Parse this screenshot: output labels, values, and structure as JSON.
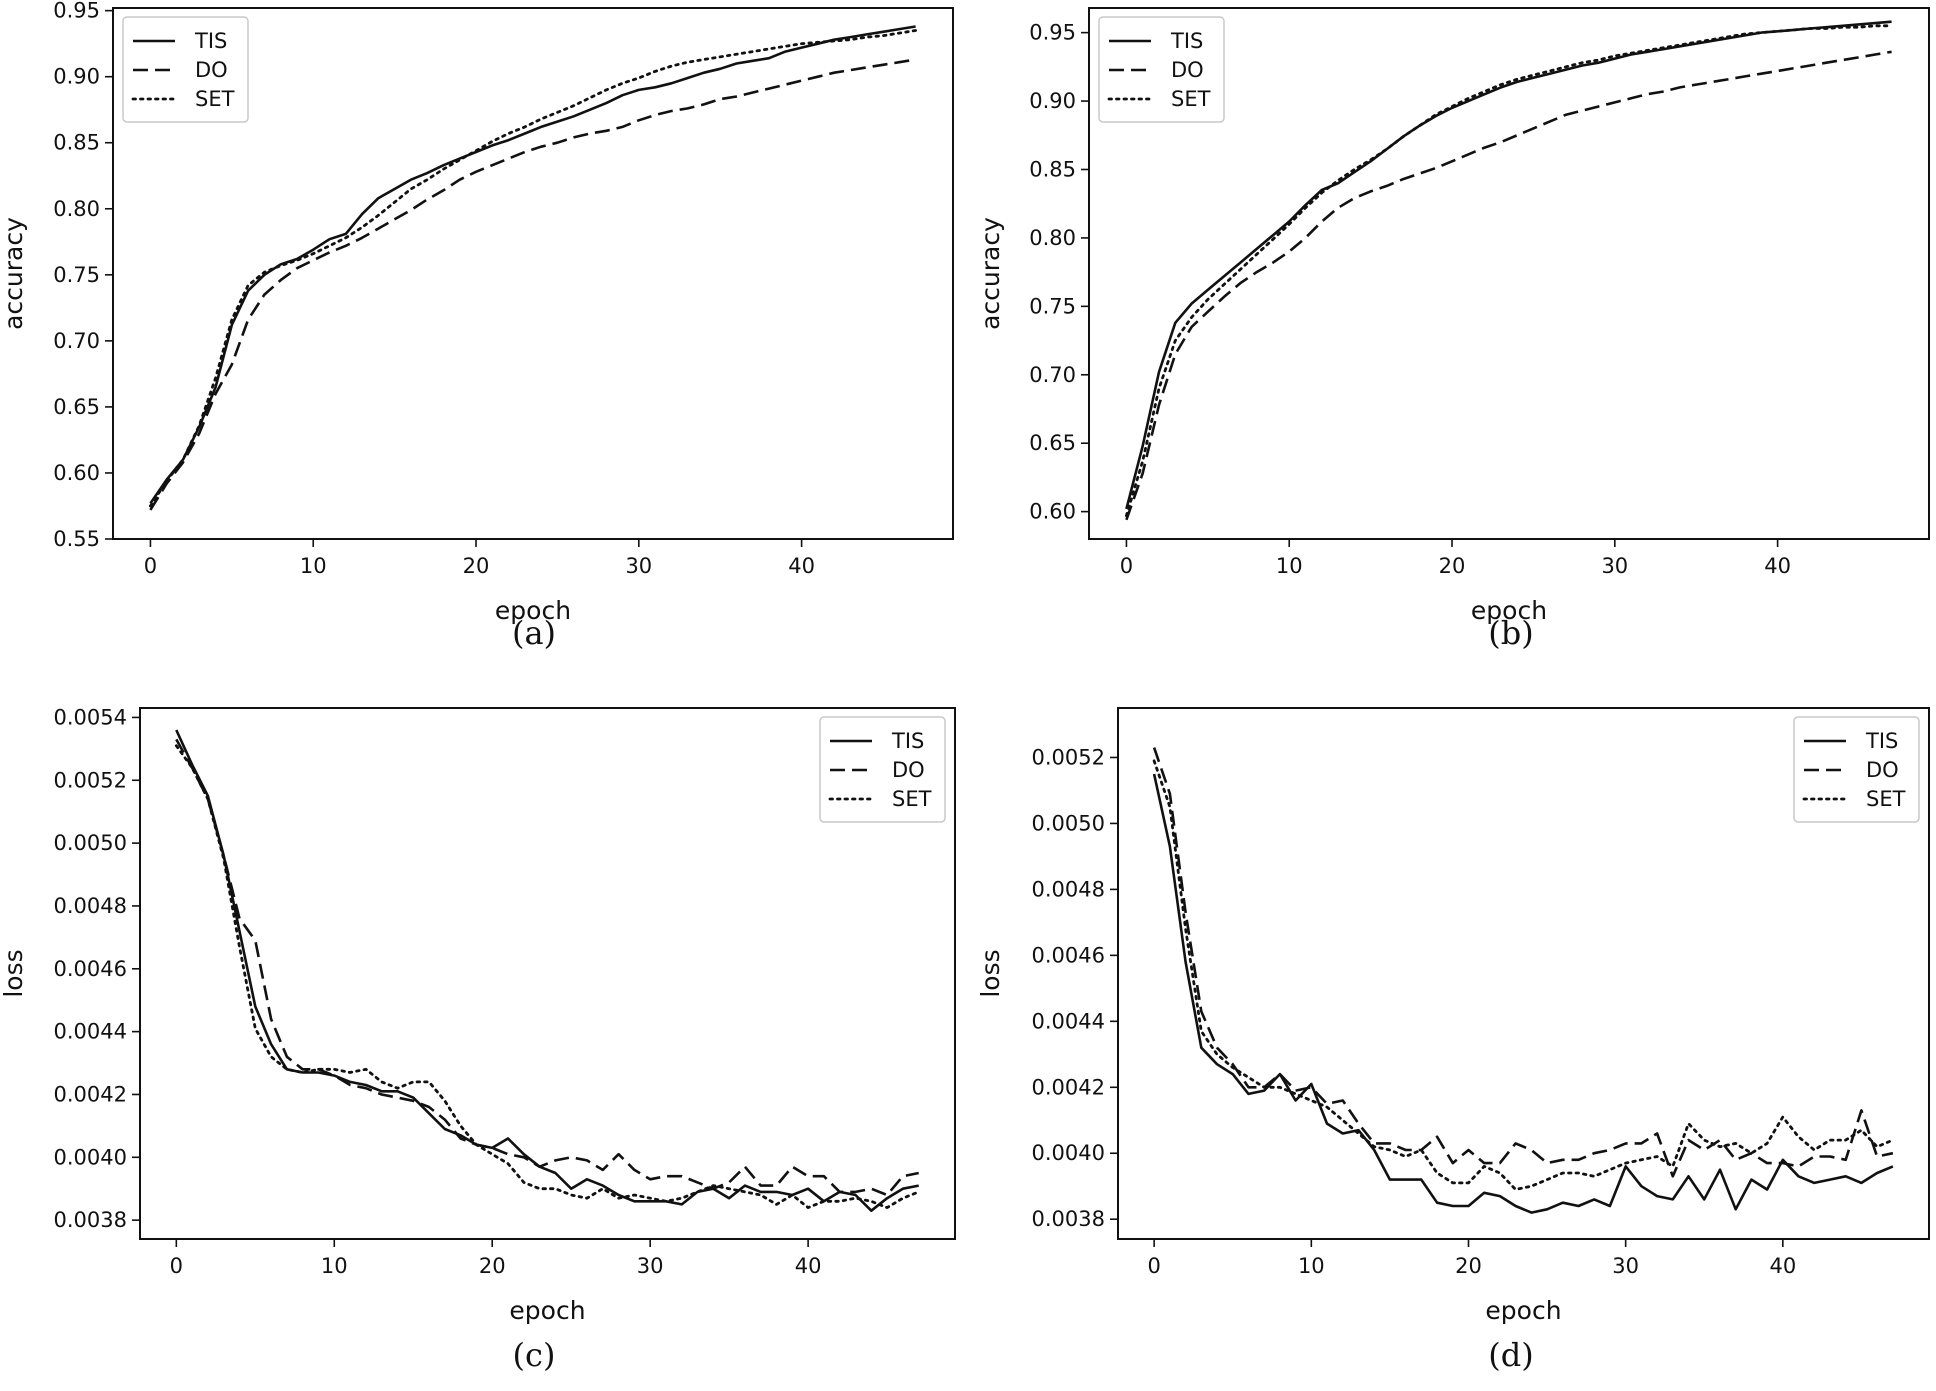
{
  "chart_data": [
    {
      "type": "line",
      "caption": "(a)",
      "xlabel": "epoch",
      "ylabel": "accuracy",
      "xlim": [
        -2.3,
        49.3
      ],
      "ylim": [
        0.55,
        0.952
      ],
      "xticks": [
        0,
        10,
        20,
        30,
        40
      ],
      "yticks": [
        0.55,
        0.6,
        0.65,
        0.7,
        0.75,
        0.8,
        0.85,
        0.9,
        0.95
      ],
      "ytick_decimals": 2,
      "legend": "top-left",
      "grid": false,
      "x": [
        0,
        1,
        2,
        3,
        4,
        5,
        6,
        7,
        8,
        9,
        10,
        11,
        12,
        13,
        14,
        15,
        16,
        17,
        18,
        19,
        20,
        21,
        22,
        23,
        24,
        25,
        26,
        27,
        28,
        29,
        30,
        31,
        32,
        33,
        34,
        35,
        36,
        37,
        38,
        39,
        40,
        41,
        42,
        43,
        44,
        45,
        46,
        47
      ],
      "series": [
        {
          "name": "TIS",
          "style": "solid",
          "values": [
            0.577,
            0.595,
            0.61,
            0.635,
            0.665,
            0.712,
            0.738,
            0.75,
            0.758,
            0.762,
            0.769,
            0.777,
            0.781,
            0.796,
            0.808,
            0.815,
            0.822,
            0.827,
            0.833,
            0.838,
            0.843,
            0.848,
            0.852,
            0.857,
            0.862,
            0.866,
            0.87,
            0.875,
            0.88,
            0.886,
            0.89,
            0.892,
            0.895,
            0.899,
            0.903,
            0.906,
            0.91,
            0.912,
            0.914,
            0.919,
            0.922,
            0.925,
            0.928,
            0.93,
            0.932,
            0.934,
            0.936,
            0.938
          ]
        },
        {
          "name": "DO",
          "style": "dashed",
          "values": [
            0.572,
            0.592,
            0.608,
            0.63,
            0.66,
            0.682,
            0.716,
            0.735,
            0.746,
            0.755,
            0.761,
            0.767,
            0.772,
            0.778,
            0.785,
            0.792,
            0.799,
            0.807,
            0.814,
            0.822,
            0.828,
            0.833,
            0.838,
            0.843,
            0.847,
            0.85,
            0.854,
            0.857,
            0.859,
            0.862,
            0.867,
            0.871,
            0.874,
            0.876,
            0.879,
            0.883,
            0.885,
            0.888,
            0.891,
            0.894,
            0.897,
            0.9,
            0.903,
            0.905,
            0.907,
            0.909,
            0.911,
            0.913
          ]
        },
        {
          "name": "SET",
          "style": "dotted",
          "values": [
            0.575,
            0.594,
            0.61,
            0.636,
            0.672,
            0.716,
            0.742,
            0.752,
            0.757,
            0.761,
            0.766,
            0.772,
            0.778,
            0.786,
            0.795,
            0.805,
            0.815,
            0.822,
            0.83,
            0.837,
            0.844,
            0.851,
            0.857,
            0.862,
            0.868,
            0.873,
            0.878,
            0.884,
            0.89,
            0.895,
            0.899,
            0.904,
            0.908,
            0.911,
            0.913,
            0.915,
            0.917,
            0.919,
            0.921,
            0.923,
            0.925,
            0.926,
            0.927,
            0.928,
            0.93,
            0.931,
            0.933,
            0.935
          ]
        }
      ]
    },
    {
      "type": "line",
      "caption": "(b)",
      "xlabel": "epoch",
      "ylabel": "accuracy",
      "xlim": [
        -2.3,
        49.3
      ],
      "ylim": [
        0.58,
        0.968
      ],
      "xticks": [
        0,
        10,
        20,
        30,
        40
      ],
      "yticks": [
        0.6,
        0.65,
        0.7,
        0.75,
        0.8,
        0.85,
        0.9,
        0.95
      ],
      "ytick_decimals": 2,
      "legend": "top-left",
      "grid": false,
      "x": [
        0,
        1,
        2,
        3,
        4,
        5,
        6,
        7,
        8,
        9,
        10,
        11,
        12,
        13,
        14,
        15,
        16,
        17,
        18,
        19,
        20,
        21,
        22,
        23,
        24,
        25,
        26,
        27,
        28,
        29,
        30,
        31,
        32,
        33,
        34,
        35,
        36,
        37,
        38,
        39,
        40,
        41,
        42,
        43,
        44,
        45,
        46,
        47
      ],
      "series": [
        {
          "name": "TIS",
          "style": "solid",
          "values": [
            0.602,
            0.648,
            0.702,
            0.738,
            0.752,
            0.762,
            0.772,
            0.782,
            0.792,
            0.802,
            0.812,
            0.824,
            0.835,
            0.84,
            0.848,
            0.856,
            0.865,
            0.874,
            0.882,
            0.889,
            0.895,
            0.9,
            0.905,
            0.91,
            0.914,
            0.917,
            0.92,
            0.923,
            0.926,
            0.928,
            0.931,
            0.934,
            0.936,
            0.938,
            0.94,
            0.942,
            0.944,
            0.946,
            0.948,
            0.95,
            0.951,
            0.952,
            0.953,
            0.954,
            0.955,
            0.956,
            0.957,
            0.958
          ]
        },
        {
          "name": "DO",
          "style": "dashed",
          "values": [
            0.594,
            0.628,
            0.678,
            0.715,
            0.735,
            0.746,
            0.757,
            0.767,
            0.775,
            0.782,
            0.79,
            0.8,
            0.812,
            0.822,
            0.829,
            0.834,
            0.838,
            0.843,
            0.847,
            0.851,
            0.856,
            0.861,
            0.866,
            0.87,
            0.875,
            0.88,
            0.885,
            0.89,
            0.893,
            0.896,
            0.899,
            0.902,
            0.905,
            0.907,
            0.91,
            0.912,
            0.914,
            0.916,
            0.918,
            0.92,
            0.922,
            0.924,
            0.926,
            0.928,
            0.93,
            0.932,
            0.934,
            0.936
          ]
        },
        {
          "name": "SET",
          "style": "dotted",
          "values": [
            0.597,
            0.637,
            0.69,
            0.725,
            0.742,
            0.755,
            0.766,
            0.777,
            0.788,
            0.799,
            0.81,
            0.822,
            0.833,
            0.842,
            0.85,
            0.857,
            0.865,
            0.874,
            0.882,
            0.89,
            0.896,
            0.902,
            0.907,
            0.912,
            0.916,
            0.919,
            0.922,
            0.925,
            0.928,
            0.93,
            0.933,
            0.935,
            0.937,
            0.939,
            0.941,
            0.943,
            0.945,
            0.947,
            0.949,
            0.95,
            0.951,
            0.952,
            0.953,
            0.953,
            0.954,
            0.954,
            0.955,
            0.955
          ]
        }
      ]
    },
    {
      "type": "line",
      "caption": "(c)",
      "xlabel": "epoch",
      "ylabel": "loss",
      "xlim": [
        -2.3,
        49.3
      ],
      "ylim": [
        0.00374,
        0.00543
      ],
      "xticks": [
        0,
        10,
        20,
        30,
        40
      ],
      "yticks": [
        0.0038,
        0.004,
        0.0042,
        0.0044,
        0.0046,
        0.0048,
        0.005,
        0.0052,
        0.0054
      ],
      "ytick_decimals": 4,
      "legend": "top-right",
      "grid": false,
      "x": [
        0,
        1,
        2,
        3,
        4,
        5,
        6,
        7,
        8,
        9,
        10,
        11,
        12,
        13,
        14,
        15,
        16,
        17,
        18,
        19,
        20,
        21,
        22,
        23,
        24,
        25,
        26,
        27,
        28,
        29,
        30,
        31,
        32,
        33,
        34,
        35,
        36,
        37,
        38,
        39,
        40,
        41,
        42,
        43,
        44,
        45,
        46,
        47
      ],
      "series": [
        {
          "name": "TIS",
          "style": "solid",
          "values": [
            0.00536,
            0.00525,
            0.00515,
            0.00496,
            0.00472,
            0.00448,
            0.00436,
            0.00428,
            0.00427,
            0.00427,
            0.00426,
            0.00424,
            0.00423,
            0.00421,
            0.00421,
            0.00419,
            0.00414,
            0.00409,
            0.00407,
            0.00404,
            0.00403,
            0.00406,
            0.00401,
            0.00397,
            0.00395,
            0.0039,
            0.00393,
            0.00391,
            0.00388,
            0.00386,
            0.00386,
            0.00386,
            0.00385,
            0.00389,
            0.0039,
            0.00387,
            0.00391,
            0.00389,
            0.00389,
            0.00388,
            0.0039,
            0.00386,
            0.00389,
            0.00388,
            0.00383,
            0.00387,
            0.0039,
            0.00391
          ]
        },
        {
          "name": "DO",
          "style": "dashed",
          "values": [
            0.00533,
            0.00524,
            0.00514,
            0.00496,
            0.00476,
            0.00469,
            0.00444,
            0.00432,
            0.00428,
            0.00428,
            0.00426,
            0.00423,
            0.00422,
            0.0042,
            0.00419,
            0.00418,
            0.00416,
            0.00412,
            0.00406,
            0.00404,
            0.00403,
            0.00401,
            0.004,
            0.00397,
            0.00399,
            0.004,
            0.00399,
            0.00396,
            0.00401,
            0.00396,
            0.00393,
            0.00394,
            0.00394,
            0.00392,
            0.0039,
            0.00392,
            0.00397,
            0.00391,
            0.00391,
            0.00397,
            0.00394,
            0.00394,
            0.00389,
            0.00389,
            0.0039,
            0.00388,
            0.00394,
            0.00395
          ]
        },
        {
          "name": "SET",
          "style": "dotted",
          "values": [
            0.00531,
            0.00524,
            0.00514,
            0.00495,
            0.00467,
            0.00441,
            0.00432,
            0.00428,
            0.00427,
            0.00428,
            0.00428,
            0.00427,
            0.00428,
            0.00424,
            0.00422,
            0.00424,
            0.00424,
            0.00418,
            0.0041,
            0.00404,
            0.00401,
            0.00398,
            0.00392,
            0.0039,
            0.0039,
            0.00388,
            0.00387,
            0.0039,
            0.00387,
            0.00388,
            0.00387,
            0.00386,
            0.00387,
            0.00389,
            0.00391,
            0.0039,
            0.00389,
            0.00388,
            0.00385,
            0.00388,
            0.00384,
            0.00386,
            0.00386,
            0.00387,
            0.00386,
            0.00384,
            0.00387,
            0.00389
          ]
        }
      ]
    },
    {
      "type": "line",
      "caption": "(d)",
      "xlabel": "epoch",
      "ylabel": "loss",
      "xlim": [
        -2.3,
        49.3
      ],
      "ylim": [
        0.00374,
        0.00535
      ],
      "xticks": [
        0,
        10,
        20,
        30,
        40
      ],
      "yticks": [
        0.0038,
        0.004,
        0.0042,
        0.0044,
        0.0046,
        0.0048,
        0.005,
        0.0052
      ],
      "ytick_decimals": 4,
      "legend": "top-right",
      "grid": false,
      "x": [
        0,
        1,
        2,
        3,
        4,
        5,
        6,
        7,
        8,
        9,
        10,
        11,
        12,
        13,
        14,
        15,
        16,
        17,
        18,
        19,
        20,
        21,
        22,
        23,
        24,
        25,
        26,
        27,
        28,
        29,
        30,
        31,
        32,
        33,
        34,
        35,
        36,
        37,
        38,
        39,
        40,
        41,
        42,
        43,
        44,
        45,
        46,
        47
      ],
      "series": [
        {
          "name": "TIS",
          "style": "solid",
          "values": [
            0.00515,
            0.00493,
            0.00458,
            0.00432,
            0.00427,
            0.00424,
            0.00418,
            0.00419,
            0.00424,
            0.00416,
            0.00421,
            0.00409,
            0.00406,
            0.00407,
            0.00401,
            0.00392,
            0.00392,
            0.00392,
            0.00385,
            0.00384,
            0.00384,
            0.00388,
            0.00387,
            0.00384,
            0.00382,
            0.00383,
            0.00385,
            0.00384,
            0.00386,
            0.00384,
            0.00396,
            0.0039,
            0.00387,
            0.00386,
            0.00393,
            0.00386,
            0.00395,
            0.00383,
            0.00392,
            0.00389,
            0.00398,
            0.00393,
            0.00391,
            0.00392,
            0.00393,
            0.00391,
            0.00394,
            0.00396
          ]
        },
        {
          "name": "DO",
          "style": "dashed",
          "values": [
            0.00523,
            0.00509,
            0.00473,
            0.00443,
            0.00432,
            0.00427,
            0.0042,
            0.0042,
            0.00424,
            0.00419,
            0.0042,
            0.00415,
            0.00416,
            0.00409,
            0.00403,
            0.00403,
            0.00401,
            0.00401,
            0.00405,
            0.00397,
            0.00401,
            0.00397,
            0.00397,
            0.00403,
            0.00401,
            0.00397,
            0.00398,
            0.00398,
            0.004,
            0.00401,
            0.00403,
            0.00403,
            0.00406,
            0.00393,
            0.00404,
            0.00401,
            0.00404,
            0.00398,
            0.004,
            0.00397,
            0.00397,
            0.00396,
            0.00399,
            0.00399,
            0.00398,
            0.00413,
            0.00399,
            0.004
          ]
        },
        {
          "name": "SET",
          "style": "dotted",
          "values": [
            0.00519,
            0.00505,
            0.00468,
            0.00437,
            0.0043,
            0.00426,
            0.00423,
            0.0042,
            0.0042,
            0.00418,
            0.00416,
            0.00414,
            0.0041,
            0.00406,
            0.00402,
            0.00401,
            0.00399,
            0.00401,
            0.00394,
            0.00391,
            0.00391,
            0.00396,
            0.00394,
            0.00389,
            0.0039,
            0.00392,
            0.00394,
            0.00394,
            0.00393,
            0.00395,
            0.00397,
            0.00398,
            0.00399,
            0.00396,
            0.00409,
            0.00404,
            0.00402,
            0.00403,
            0.004,
            0.00403,
            0.00411,
            0.00405,
            0.00401,
            0.00404,
            0.00404,
            0.00407,
            0.00402,
            0.00404
          ]
        }
      ]
    }
  ]
}
